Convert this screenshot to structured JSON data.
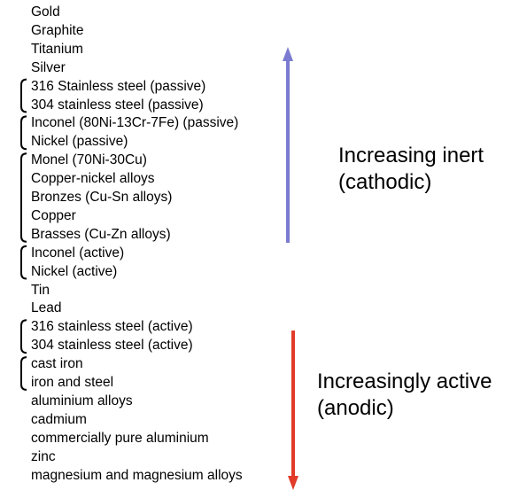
{
  "metals": [
    "Gold",
    "Graphite",
    "Titanium",
    "Silver",
    "316 Stainless steel (passive)",
    "304 stainless steel (passive)",
    "Inconel (80Ni-13Cr-7Fe) (passive)",
    "Nickel (passive)",
    "Monel (70Ni-30Cu)",
    "Copper-nickel alloys",
    "Bronzes (Cu-Sn alloys)",
    "Copper",
    "Brasses (Cu-Zn alloys)",
    "Inconel (active)",
    "Nickel (active)",
    "Tin",
    "Lead",
    "316 stainless steel (active)",
    "304 stainless steel (active)",
    "cast iron",
    "iron and steel",
    "aluminium alloys",
    "cadmium",
    "commercially pure aluminium",
    "zinc",
    "magnesium and magnesium alloys"
  ],
  "groups": [
    [
      4,
      5
    ],
    [
      6,
      7
    ],
    [
      8,
      12
    ],
    [
      13,
      14
    ],
    [
      17,
      18
    ],
    [
      19,
      20
    ]
  ],
  "labels": {
    "inert": [
      "Increasing inert",
      "(cathodic)"
    ],
    "active": [
      "Increasingly active",
      "(anodic)"
    ]
  },
  "arrows": {
    "inert": {
      "color": "#7b7bd2",
      "direction": "up"
    },
    "active": {
      "color": "#e23b2a",
      "direction": "down"
    }
  }
}
